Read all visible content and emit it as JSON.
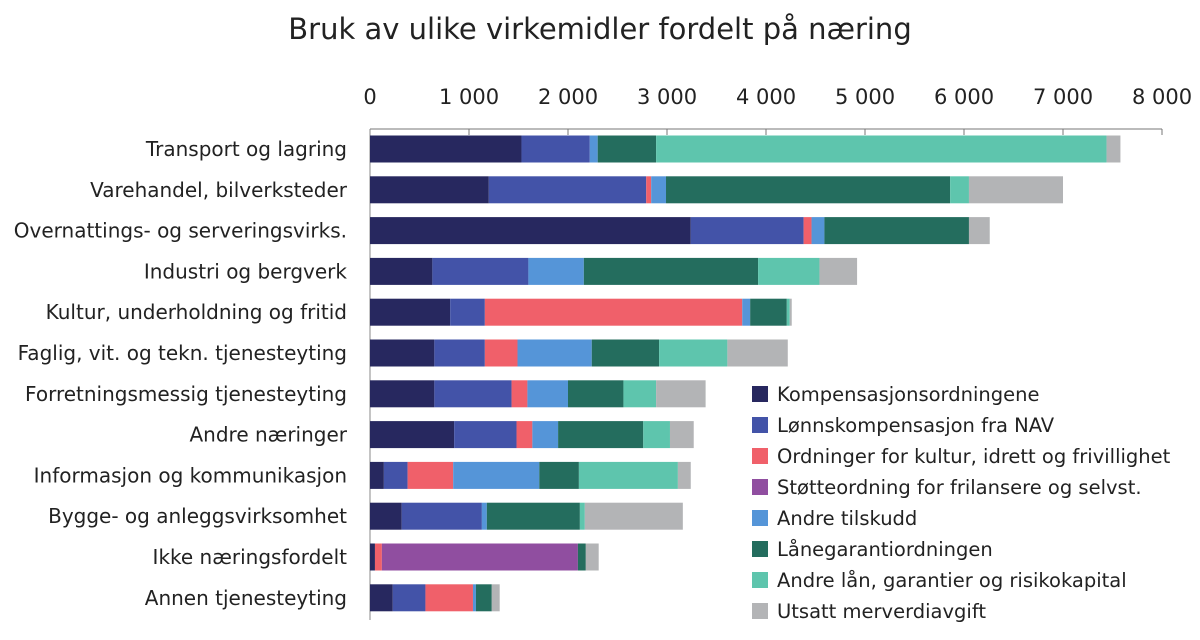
{
  "chart_data": {
    "type": "bar",
    "orientation": "horizontal",
    "stacked": true,
    "title": "Bruk av ulike virkemidler fordelt på næring",
    "xlabel": "",
    "ylabel": "",
    "xlim": [
      0,
      8000
    ],
    "tick_values": [
      0,
      1000,
      2000,
      3000,
      4000,
      5000,
      6000,
      7000,
      8000
    ],
    "tick_labels": [
      "0",
      "1 000",
      "2 000",
      "3 000",
      "4 000",
      "5 000",
      "6 000",
      "7 000",
      "8 000"
    ],
    "axis_position": "top",
    "grid": false,
    "legend_position": "bottom-right",
    "categories": [
      "Transport og lagring",
      "Varehandel, bilverksteder",
      "Overnattings- og serveringsvirks.",
      "Industri og bergverk",
      "Kultur, underholdning og fritid",
      "Faglig, vit. og tekn. tjenesteyting",
      "Forretningsmessig tjenesteyting",
      "Andre næringer",
      "Informasjon og kommunikasjon",
      "Bygge- og anleggsvirksomhet",
      "Ikke næringsfordelt",
      "Annen tjenesteyting"
    ],
    "series": [
      {
        "name": "Kompensasjonsordningene",
        "color": "#27285f",
        "values": [
          1530,
          1200,
          3240,
          630,
          810,
          650,
          650,
          850,
          140,
          320,
          50,
          230
        ]
      },
      {
        "name": "Lønnskompensasjon fra NAV",
        "color": "#4353a8",
        "values": [
          690,
          1590,
          1140,
          970,
          350,
          510,
          780,
          630,
          240,
          810,
          0,
          330
        ]
      },
      {
        "name": "Ordninger for kultur, idrett og frivillighet",
        "color": "#f0606a",
        "values": [
          0,
          50,
          80,
          0,
          2600,
          330,
          160,
          160,
          460,
          0,
          70,
          480
        ]
      },
      {
        "name": "Støtteordning for frilansere og selvst.",
        "color": "#904ea0",
        "values": [
          0,
          0,
          0,
          0,
          0,
          0,
          0,
          0,
          0,
          0,
          1980,
          0
        ]
      },
      {
        "name": "Andre tilskudd",
        "color": "#5595d8",
        "values": [
          80,
          150,
          130,
          560,
          80,
          750,
          410,
          260,
          870,
          50,
          0,
          30
        ]
      },
      {
        "name": "Lånegarantiordningen",
        "color": "#246d5e",
        "values": [
          590,
          2870,
          1460,
          1760,
          370,
          680,
          560,
          860,
          400,
          940,
          80,
          160
        ]
      },
      {
        "name": "Andre lån, garantier og risikokapital",
        "color": "#5ec5ad",
        "values": [
          4550,
          190,
          0,
          620,
          30,
          690,
          330,
          270,
          1000,
          50,
          0,
          0
        ]
      },
      {
        "name": "Utsatt merverdiavgift",
        "color": "#b3b4b6",
        "values": [
          140,
          950,
          210,
          380,
          20,
          610,
          500,
          240,
          130,
          990,
          130,
          80
        ]
      }
    ]
  }
}
